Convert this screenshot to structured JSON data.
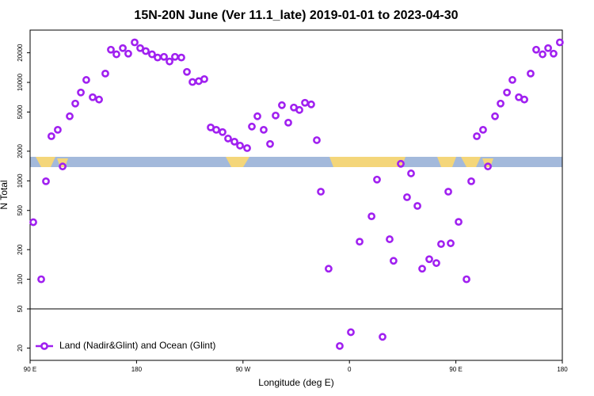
{
  "chart_data": {
    "type": "scatter",
    "title": "15N-20N June (Ver 11.1_late)   2019-01-01 to 2023-04-30",
    "x_label": "Longitude (deg E)",
    "y_label": "N Total",
    "log_y": true,
    "legend": "lower left",
    "hline": 50,
    "xlim": [
      90,
      540
    ],
    "ylim": [
      15,
      34000
    ],
    "xticks": [
      {
        "value": 90,
        "label": "90 E"
      },
      180,
      {
        "value": 270,
        "label": "90 W"
      },
      {
        "value": 360,
        "label": "0"
      },
      {
        "value": 450,
        "label": "90 E"
      },
      {
        "value": 540,
        "label": "180"
      }
    ],
    "yticks": [
      20,
      50,
      100,
      200,
      500,
      1000,
      2000,
      5000,
      10000,
      20000
    ],
    "series": [
      {
        "name": "Land (Nadir&Glint) and Ocean (Glint)",
        "color": "#a020f0",
        "x": [
          92.7,
          99.4,
          103.4,
          108,
          113.4,
          117.5,
          123.5,
          128.2,
          132.9,
          137.5,
          142.9,
          148.3,
          153.6,
          158.3,
          163,
          168.4,
          173,
          178.4,
          183.1,
          187.8,
          193.1,
          197.8,
          203.2,
          207.9,
          212.5,
          217.9,
          222.6,
          227.3,
          232.6,
          237.3,
          242.7,
          247.4,
          252.7,
          257.4,
          262.8,
          267.5,
          273.5,
          277.5,
          282.2,
          287.5,
          292.9,
          297.6,
          302.9,
          308.3,
          313,
          317.7,
          322.4,
          327.7,
          332.4,
          335.8,
          342.4,
          351.8,
          361.2,
          368.6,
          378.7,
          383.3,
          388,
          394,
          397.3,
          403.4,
          408.7,
          412.1,
          417.5,
          421.5,
          427.5,
          433.5,
          437.5,
          443.6,
          445.6,
          452.3,
          459,
          463,
          467.7,
          473,
          477.1,
          483.1,
          487.8,
          493.2,
          497.8,
          503.2,
          507.9,
          513.2,
          517.9,
          523.3,
          528,
          532.6,
          537.9
        ],
        "values": [
          380,
          100,
          990,
          2840,
          3300,
          1400,
          4530,
          6100,
          7900,
          10600,
          7070,
          6700,
          12300,
          21500,
          19300,
          22300,
          19600,
          25500,
          22300,
          20800,
          19300,
          17900,
          18200,
          16300,
          18200,
          17900,
          12800,
          10100,
          10300,
          10800,
          3490,
          3300,
          3130,
          2690,
          2500,
          2280,
          2150,
          3560,
          4530,
          3300,
          2370,
          4610,
          5870,
          3900,
          5560,
          5250,
          6210,
          5980,
          2590,
          776,
          128,
          21,
          29,
          241,
          436,
          1030,
          26,
          255,
          154,
          1490,
          682,
          1190,
          556,
          128,
          160,
          146,
          228,
          776,
          232,
          383,
          100,
          990,
          2840,
          3300,
          1400,
          4530,
          6100,
          7900,
          10600,
          7070,
          6700,
          12300,
          21500,
          19300,
          22300,
          19600,
          25500
        ]
      }
    ]
  }
}
